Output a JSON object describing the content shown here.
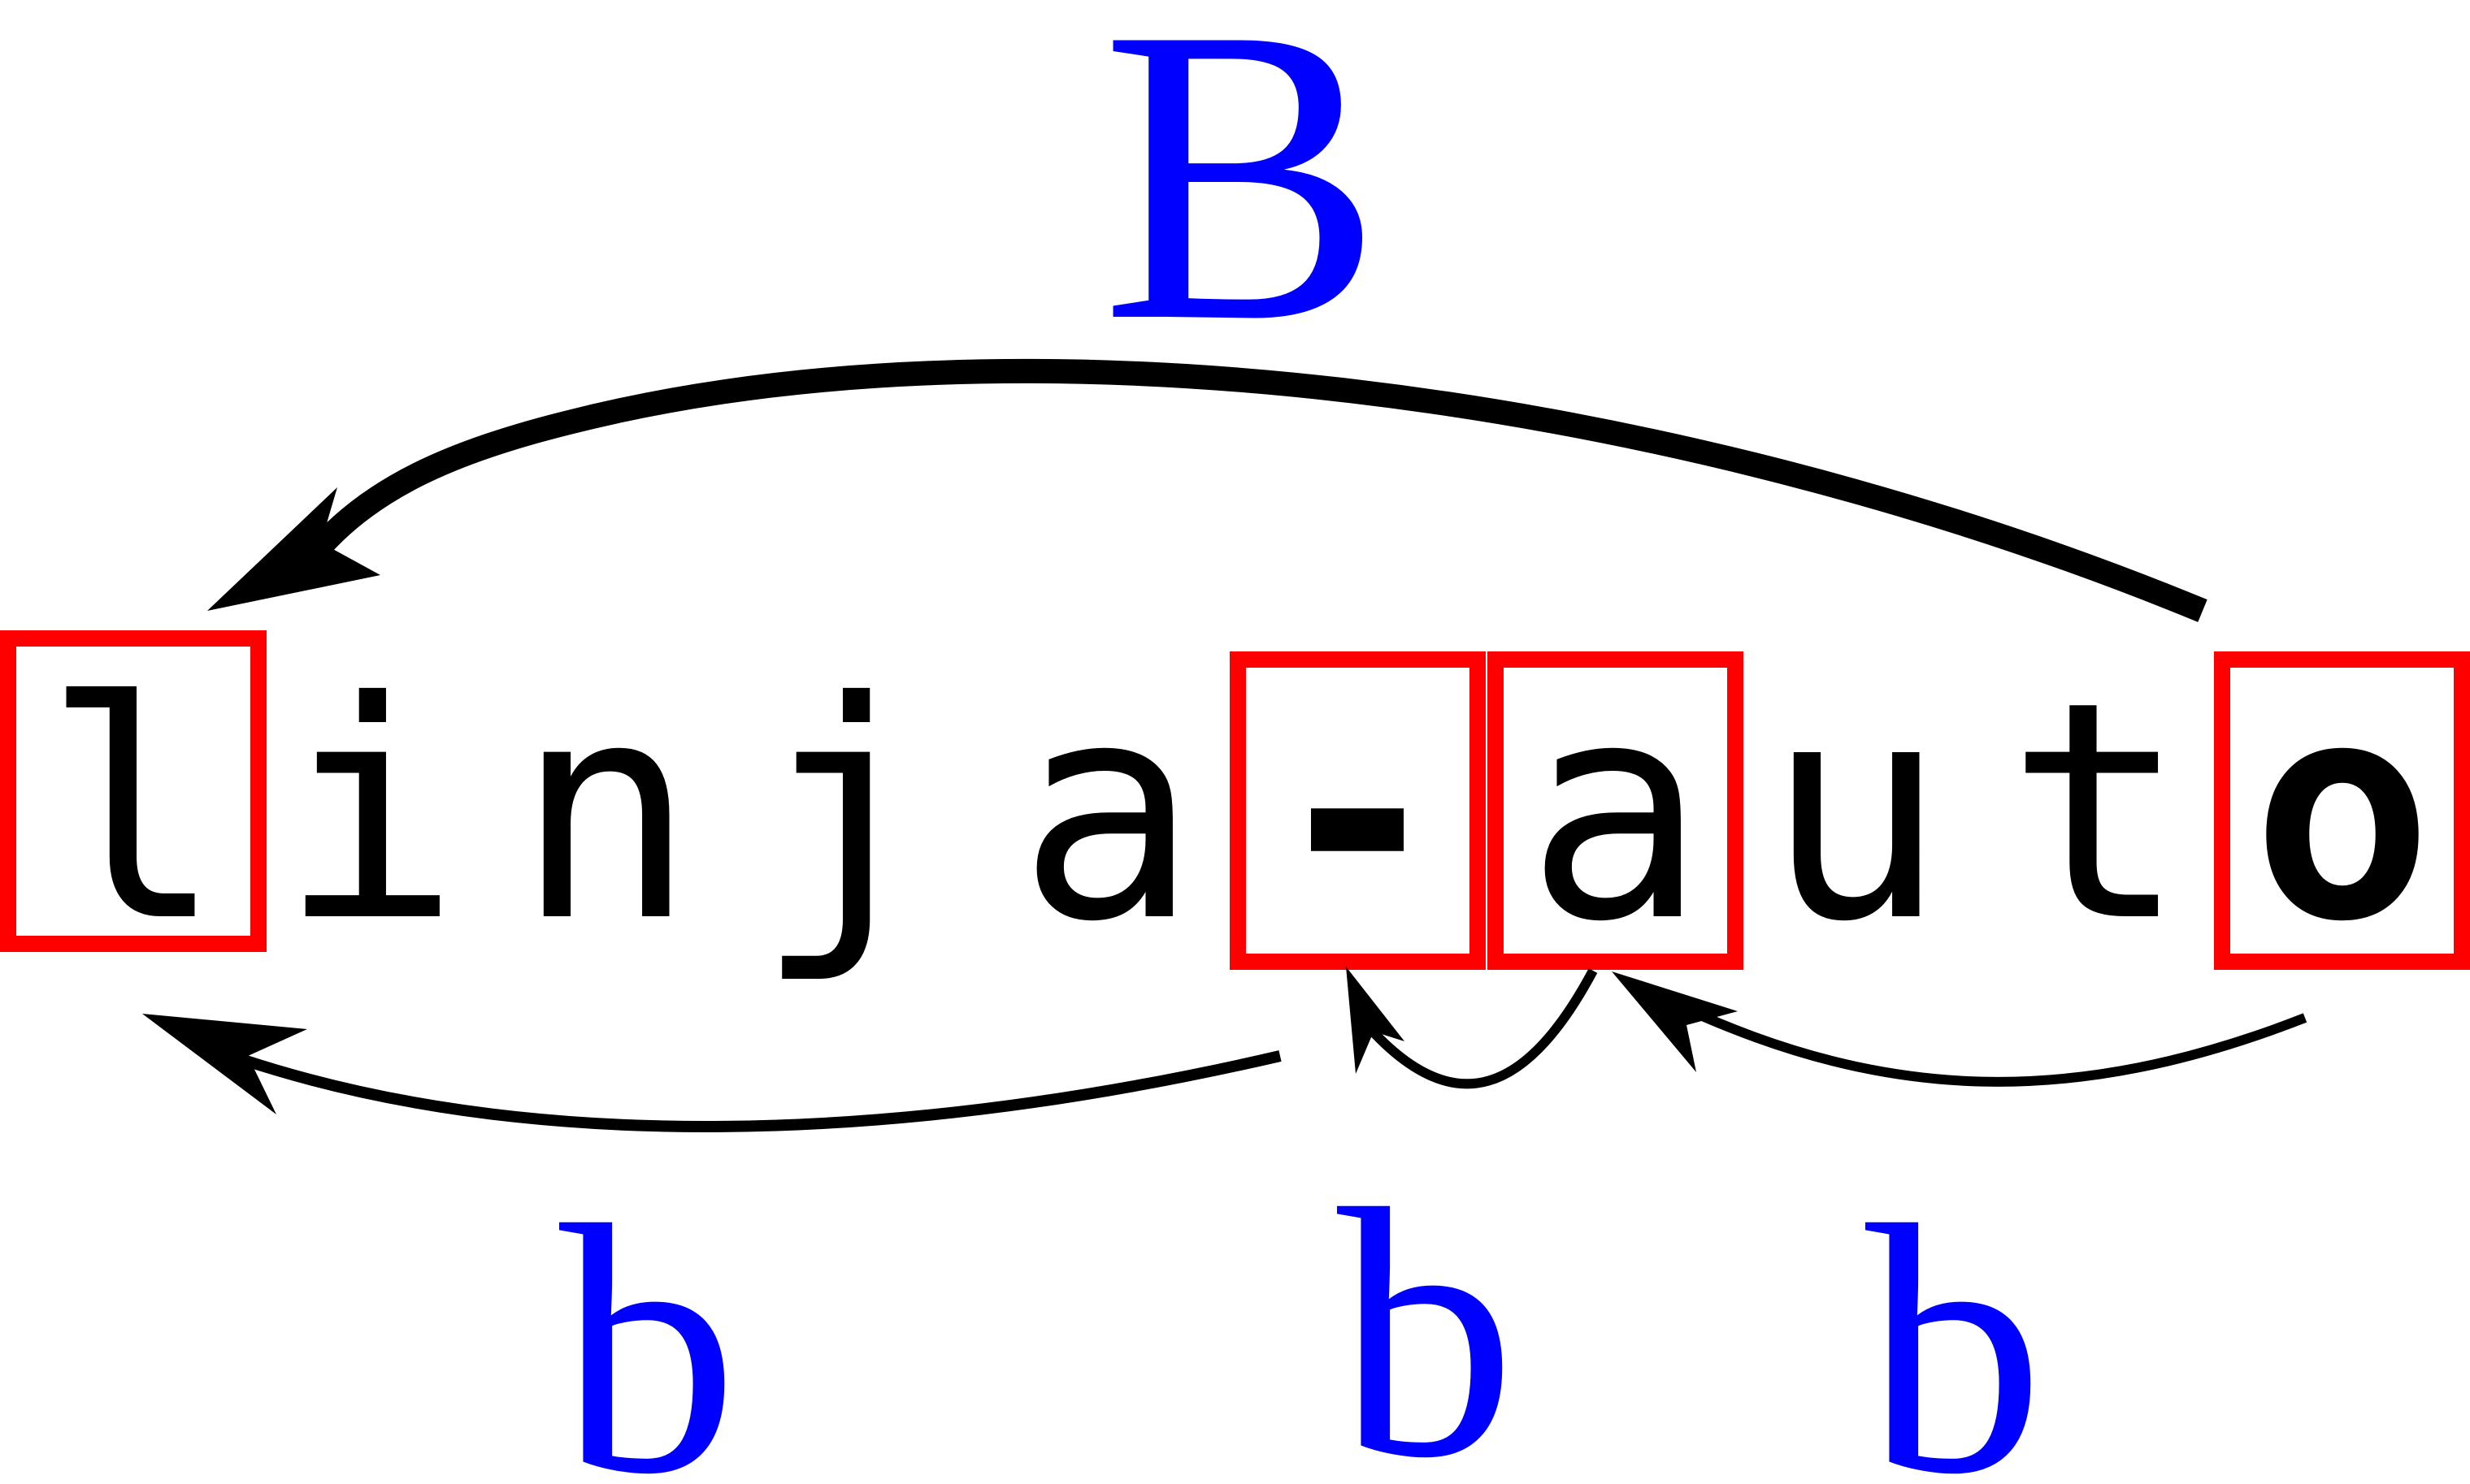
{
  "colors": {
    "highlight_box": "#ff0000",
    "label": "#0000ff",
    "text": "#000000"
  },
  "word": {
    "characters": [
      "l",
      "i",
      "n",
      "j",
      "a",
      "-",
      "a",
      "u",
      "t",
      "o"
    ],
    "boxed_indices": [
      0,
      5,
      6,
      9
    ],
    "bold_indices": [
      5,
      9
    ]
  },
  "labels": {
    "big_jump": "B",
    "small_jump_1": "b",
    "small_jump_2": "b",
    "small_jump_3": "b"
  },
  "arrows": [
    {
      "name": "big-jump",
      "from": "o",
      "to": "l",
      "label": "B",
      "weight": "thick"
    },
    {
      "name": "small-jump-1",
      "from": "-",
      "to": "l",
      "label": "b",
      "weight": "thin"
    },
    {
      "name": "small-jump-2",
      "from": "a",
      "to": "-",
      "label": "b",
      "weight": "thin"
    },
    {
      "name": "small-jump-3",
      "from": "o",
      "to": "a",
      "label": "b",
      "weight": "thin"
    }
  ],
  "icons": {
    "arrowhead": "arrowhead-icon"
  }
}
